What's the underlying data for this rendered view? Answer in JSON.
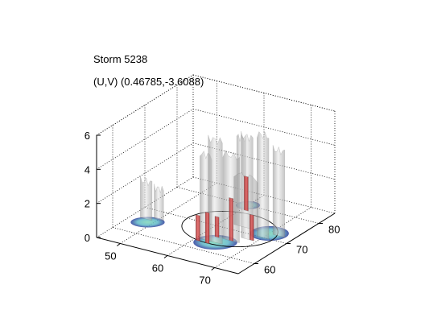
{
  "chart_data": {
    "type": "isosurface-3d",
    "title_lines": [
      "Storm 5238",
      "(U,V) (0.46785,-3.6088)"
    ],
    "xlim": [
      45,
      75
    ],
    "ylim": [
      55,
      85
    ],
    "zlim": [
      0,
      6
    ],
    "x_ticks": [
      50,
      60,
      70
    ],
    "y_ticks": [
      60,
      70,
      80
    ],
    "z_ticks": [
      0,
      2,
      4,
      6
    ],
    "grid": true,
    "blobs": [
      {
        "x": 48,
        "y": 66,
        "h": 2.2,
        "w": 2.5,
        "d": 2.5,
        "color": "#b8b8b8"
      },
      {
        "x": 50,
        "y": 67,
        "h": 1.8,
        "w": 2.0,
        "d": 2.0,
        "color": "#b8b8b8"
      },
      {
        "x": 60,
        "y": 78,
        "h": 4.2,
        "w": 2.0,
        "d": 2.0,
        "color": "#c0c0c0"
      },
      {
        "x": 62,
        "y": 64,
        "h": 5.0,
        "w": 2.5,
        "d": 2.5,
        "color": "#a8a8a8"
      },
      {
        "x": 64,
        "y": 64,
        "h": 6.0,
        "w": 3.0,
        "d": 3.0,
        "color": "#b0b0b0"
      },
      {
        "x": 66,
        "y": 66,
        "h": 5.0,
        "w": 3.5,
        "d": 3.5,
        "color": "#c8c8c8"
      },
      {
        "x": 68,
        "y": 68,
        "h": 6.0,
        "w": 2.5,
        "d": 2.5,
        "color": "#c0c0c0"
      },
      {
        "x": 70,
        "y": 70,
        "h": 6.0,
        "w": 2.5,
        "d": 2.5,
        "color": "#b8b8b8"
      },
      {
        "x": 72,
        "y": 72,
        "h": 5.0,
        "w": 2.5,
        "d": 2.5,
        "color": "#c4c4c4"
      },
      {
        "x": 65,
        "y": 72,
        "h": 3.0,
        "w": 5.0,
        "d": 5.0,
        "color": "#d0d0d0"
      }
    ],
    "red_cores": [
      {
        "x": 61,
        "y": 78,
        "h": 2.0
      },
      {
        "x": 61,
        "y": 63,
        "h": 1.5
      },
      {
        "x": 63,
        "y": 63,
        "h": 1.8
      },
      {
        "x": 66,
        "y": 66,
        "h": 2.5
      },
      {
        "x": 69,
        "y": 68,
        "h": 1.5
      },
      {
        "x": 63,
        "y": 66,
        "h": 1.2
      }
    ],
    "base_patches": [
      {
        "x": 49,
        "y": 65,
        "rx": 3.5,
        "ry": 2.5
      },
      {
        "x": 64,
        "y": 64,
        "rx": 4.5,
        "ry": 3.5
      },
      {
        "x": 70,
        "y": 72,
        "rx": 4.0,
        "ry": 3.5
      },
      {
        "x": 60,
        "y": 80,
        "rx": 2.5,
        "ry": 2.0
      }
    ],
    "ellipse": {
      "cx": 63,
      "cy": 70,
      "rx": 9,
      "ry": 7
    }
  }
}
